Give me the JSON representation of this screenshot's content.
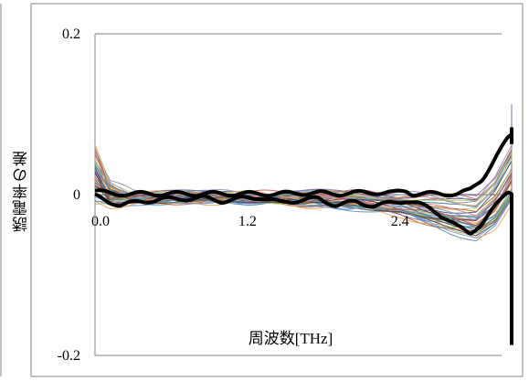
{
  "chart_data": {
    "type": "line",
    "title": "",
    "xlabel": "周波数[THz]",
    "ylabel": "誘電率の差",
    "xlim": [
      0,
      3.2
    ],
    "ylim": [
      -0.2,
      0.2
    ],
    "grid": "horizontal",
    "legend": "none",
    "x_ticks": [
      "0.0",
      "1.2",
      "2.4"
    ],
    "x_tick_values": [
      0,
      1.2,
      2.4
    ],
    "y_ticks": [
      "0.2",
      "0",
      "-0.2"
    ],
    "y_tick_values": [
      0.2,
      0,
      -0.2
    ],
    "x_tick_partial": [
      "0.",
      "1.2",
      "2."
    ],
    "colors": {
      "frame": "#808080",
      "grid": "#808080",
      "envelope": "#000000",
      "palette": [
        "#4F81BD",
        "#C0504D",
        "#9BBB59",
        "#8064A2",
        "#4BACC6",
        "#F79646",
        "#2C4D75",
        "#772C2A",
        "#5F7530",
        "#4D3B62",
        "#276A7C",
        "#B65708",
        "#729ACA",
        "#CD7371",
        "#AFC97A",
        "#9983B5",
        "#6FBDD1",
        "#F9AB6B"
      ]
    },
    "envelope_series": [
      {
        "name": "upper",
        "x": [
          0,
          0.05,
          0.12,
          0.2,
          0.35,
          0.5,
          0.7,
          0.9,
          1.1,
          1.3,
          1.45,
          1.6,
          1.75,
          1.9,
          2.05,
          2.2,
          2.35,
          2.45,
          2.5,
          2.55,
          2.65,
          2.75,
          2.85,
          2.95,
          3.05,
          3.15,
          3.25,
          3.35,
          3.42,
          3.48,
          3.55
        ],
        "values": [
          0.005,
          0.003,
          0.001,
          0.001,
          0.001,
          0.001,
          0.001,
          0.001,
          0.001,
          0.001,
          0.001,
          0.002,
          0.002,
          0.001,
          0.002,
          0.003,
          0.002,
          0.005,
          0.001,
          0.001,
          0.001,
          0.001,
          0.001,
          0.005,
          0.02,
          0.045,
          0.07,
          0.085,
          0.075,
          0.068,
          0.06
        ]
      },
      {
        "name": "lower",
        "x": [
          0,
          0.1,
          0.2,
          0.35,
          0.5,
          0.7,
          0.85,
          1.0,
          1.15,
          1.3,
          1.45,
          1.6,
          1.75,
          1.9,
          2.05,
          2.2,
          2.35,
          2.45,
          2.55,
          2.65,
          2.75,
          2.85,
          2.95,
          3.05,
          3.15,
          3.25,
          3.35,
          3.45,
          3.55,
          3.6
        ],
        "values": [
          -0.002,
          -0.008,
          -0.013,
          -0.009,
          -0.006,
          -0.005,
          -0.004,
          -0.008,
          -0.005,
          -0.003,
          -0.01,
          -0.007,
          -0.005,
          -0.013,
          -0.009,
          -0.014,
          -0.01,
          -0.007,
          -0.012,
          -0.018,
          -0.028,
          -0.04,
          -0.048,
          -0.035,
          -0.015,
          0.005,
          0.0,
          -0.05,
          -0.12,
          -0.185
        ]
      }
    ],
    "band": {
      "x": [
        0,
        0.3,
        0.6,
        0.9,
        1.2,
        1.5,
        1.8,
        2.1,
        2.4,
        2.6,
        2.8,
        3.0,
        3.15,
        3.3,
        3.4,
        3.5,
        3.6
      ],
      "center": [
        0.005,
        -0.004,
        -0.004,
        -0.003,
        -0.004,
        -0.004,
        -0.006,
        -0.008,
        -0.012,
        -0.018,
        -0.025,
        -0.03,
        -0.01,
        0.03,
        0.055,
        0.02,
        -0.02
      ],
      "spread": [
        0.02,
        0.006,
        0.005,
        0.005,
        0.005,
        0.006,
        0.008,
        0.01,
        0.012,
        0.018,
        0.022,
        0.025,
        0.03,
        0.035,
        0.045,
        0.05,
        0.06
      ],
      "count": 40
    }
  }
}
